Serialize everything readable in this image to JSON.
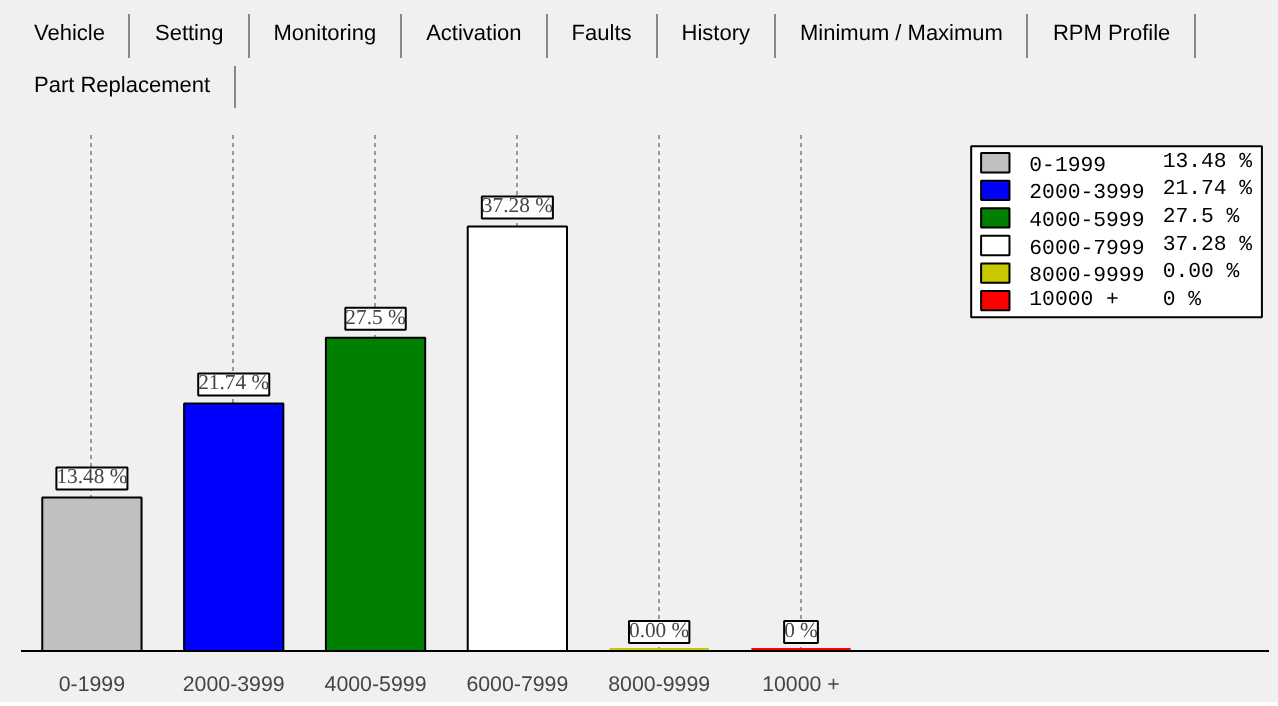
{
  "chart_data": {
    "type": "bar",
    "categories": [
      "0-1999",
      "2000-3999",
      "4000-5999",
      "6000-7999",
      "8000-9999",
      "10000 +"
    ],
    "series": [
      {
        "name": "0-1999",
        "color": "#c0c0c0",
        "values": [
          13.48,
          null,
          null,
          null,
          null,
          null
        ],
        "value_labels": [
          "13.48 %",
          null,
          null,
          null,
          null,
          null
        ]
      },
      {
        "name": "2000-3999",
        "color": "#0000ff",
        "values": [
          null,
          21.74,
          null,
          null,
          null,
          null
        ],
        "value_labels": [
          null,
          "21.74 %",
          null,
          null,
          null,
          null
        ]
      },
      {
        "name": "4000-5999",
        "color": "#008000",
        "values": [
          null,
          null,
          27.5,
          null,
          null,
          null
        ],
        "value_labels": [
          null,
          null,
          "27.5 %",
          null,
          null,
          null
        ]
      },
      {
        "name": "6000-7999",
        "color": "#ffffff",
        "values": [
          null,
          null,
          null,
          37.28,
          null,
          null
        ],
        "value_labels": [
          null,
          null,
          null,
          "37.28 %",
          null,
          null
        ]
      },
      {
        "name": "8000-9999",
        "color": "#c8c800",
        "values": [
          null,
          null,
          null,
          null,
          0.0,
          null
        ],
        "value_labels": [
          null,
          null,
          null,
          null,
          "0.00 %",
          null
        ]
      },
      {
        "name": "10000 +",
        "color": "#ff0000",
        "values": [
          null,
          null,
          null,
          null,
          null,
          0
        ],
        "value_labels": [
          null,
          null,
          null,
          null,
          null,
          "0 %"
        ]
      }
    ],
    "grid": "x",
    "legend": "top right",
    "annotations": [
      "Vehicle",
      "Setting",
      "Monitoring",
      "Activation",
      "Faults",
      "History",
      "Minimum / Maximum",
      "RPM Profile",
      "Part Replacement"
    ]
  }
}
